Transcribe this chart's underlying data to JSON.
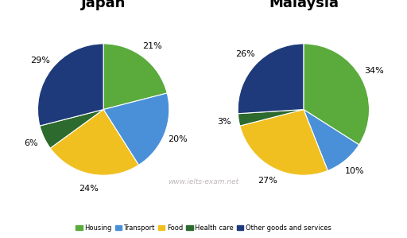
{
  "japan": {
    "title": "Japan",
    "labels": [
      "Housing",
      "Transport",
      "Food",
      "Health care",
      "Other goods and services"
    ],
    "values": [
      21,
      20,
      24,
      6,
      29
    ],
    "percentages": [
      "21%",
      "20%",
      "24%",
      "6%",
      "29%"
    ],
    "colors": [
      "#5aaa3c",
      "#4a90d9",
      "#f0c020",
      "#2d6a2d",
      "#1e3a7a"
    ],
    "startangle": 90
  },
  "malaysia": {
    "title": "Malaysia",
    "labels": [
      "Housing",
      "Transport",
      "Food",
      "Health care",
      "Other goods and services"
    ],
    "values": [
      34,
      10,
      27,
      3,
      26
    ],
    "percentages": [
      "34%",
      "10%",
      "27%",
      "3%",
      "26%"
    ],
    "colors": [
      "#5aaa3c",
      "#4a90d9",
      "#f0c020",
      "#2d6a2d",
      "#1e3a7a"
    ],
    "startangle": 90
  },
  "legend_labels": [
    "Housing",
    "Transport",
    "Food",
    "Health care",
    "Other goods and services"
  ],
  "legend_colors": [
    "#5aaa3c",
    "#4a90d9",
    "#f0c020",
    "#2d6a2d",
    "#1e3a7a"
  ],
  "watermark": "www.ielts-exam.net",
  "watermark_color": "#c0b8b8",
  "title_fontsize": 13,
  "pct_fontsize": 8,
  "background_color": "#ffffff"
}
